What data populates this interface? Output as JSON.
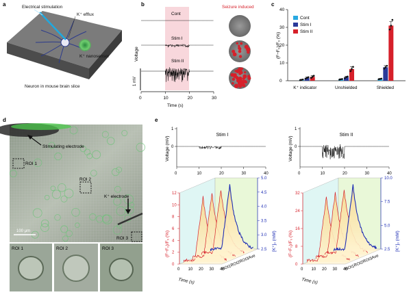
{
  "panel_letters": {
    "a": "a",
    "b": "b",
    "c": "c",
    "d": "d",
    "e": "e"
  },
  "panel_a": {
    "labels": [
      "Electrical stimulation",
      "K⁺ efflux",
      "K⁺ nanosensor",
      "Neuron in mouse brain slice"
    ]
  },
  "panel_b": {
    "trace_labels": [
      "Cont",
      "Stim I",
      "Stim II"
    ],
    "seizure_label": "Seizure induced",
    "ylabel": "Voltage",
    "scale_label": "1 mV",
    "xlabel": "Time (s)",
    "xticks": [
      "0",
      "10",
      "20",
      "30"
    ],
    "colors": {
      "highlight": "#f8d7dc",
      "seizure_text": "#d6202a",
      "dots": "#d6202a"
    }
  },
  "panel_d": {
    "labels": [
      "Stimulating electrode",
      "K⁺ electrode",
      "ROI 1",
      "ROI 2",
      "ROI 3"
    ],
    "scale_bar": "100 μm",
    "insets": [
      "ROI 1",
      "ROI 2",
      "ROI 3"
    ]
  },
  "panel_e": {
    "top_ylabel": "Voltage (mV)",
    "top_xlabel": "Time (s)",
    "left": {
      "title": "Stim I",
      "top_yticks": [
        "0",
        "1"
      ],
      "top_xticks": [
        "0",
        "10",
        "20",
        "30",
        "40"
      ],
      "left_yticks": [
        "0",
        "2",
        "4",
        "6",
        "8",
        "10",
        "12"
      ],
      "right_yticks": [
        "2.5",
        "3.0",
        "3.5",
        "4.0",
        "4.5",
        "5.0"
      ],
      "time_ticks": [
        "0",
        "10",
        "20",
        "30",
        "40"
      ],
      "rois": [
        "ROI1",
        "ROI2",
        "ROI3",
        "Ave"
      ]
    },
    "right": {
      "title": "Stim II",
      "top_yticks": [
        "0",
        "1"
      ],
      "top_xticks": [
        "0",
        "10",
        "20",
        "30",
        "40"
      ],
      "left_yticks": [
        "0",
        "8",
        "16",
        "24",
        "32"
      ],
      "right_yticks": [
        "2.5",
        "5.0",
        "7.5",
        "10.0"
      ],
      "time_ticks": [
        "0",
        "10",
        "20",
        "30",
        "40"
      ],
      "rois": [
        "ROI1",
        "ROI2",
        "ROI3",
        "Ave"
      ]
    },
    "left_axis_label": "(F−F₀)/F₀ (%)",
    "right_axis_label": "[K⁺]ₒ (mM)",
    "time_label": "Time (s)",
    "colors": {
      "fluor": "#d6202a",
      "k_conc": "#1f2fb5"
    }
  },
  "chart_data": [
    {
      "type": "bar",
      "panel": "c",
      "categories": [
        "K⁺ indicator",
        "Unshielded",
        "Shielded"
      ],
      "series": [
        {
          "name": "Cont",
          "color": "#29a9e1",
          "values": [
            0.5,
            0.8,
            1.0
          ],
          "errors": [
            0.3,
            0.3,
            0.3
          ],
          "points": [
            [
              0.3,
              0.5,
              0.7
            ],
            [
              0.6,
              0.8,
              1.0
            ],
            [
              0.8,
              1.0,
              1.2
            ]
          ]
        },
        {
          "name": "Stim I",
          "color": "#2a3a9a",
          "values": [
            1.6,
            2.0,
            7.6
          ],
          "errors": [
            0.5,
            0.5,
            0.9
          ],
          "points": [
            [
              1.2,
              1.6,
              2.0
            ],
            [
              1.5,
              2.0,
              2.4
            ],
            [
              6.8,
              7.6,
              8.4
            ]
          ]
        },
        {
          "name": "Stim II",
          "color": "#d6202a",
          "values": [
            2.2,
            6.6,
            31.0
          ],
          "errors": [
            0.7,
            1.3,
            2.2
          ],
          "points": [
            [
              1.6,
              2.2,
              2.8
            ],
            [
              5.4,
              6.6,
              7.8
            ],
            [
              28.8,
              31.0,
              34.2
            ]
          ]
        }
      ],
      "ylabel": "(F−F₀)/F₀ (%)",
      "ylim": [
        0,
        40
      ],
      "yticks": [
        "0",
        "10",
        "20",
        "30",
        "40"
      ],
      "legend": "top-left"
    }
  ]
}
